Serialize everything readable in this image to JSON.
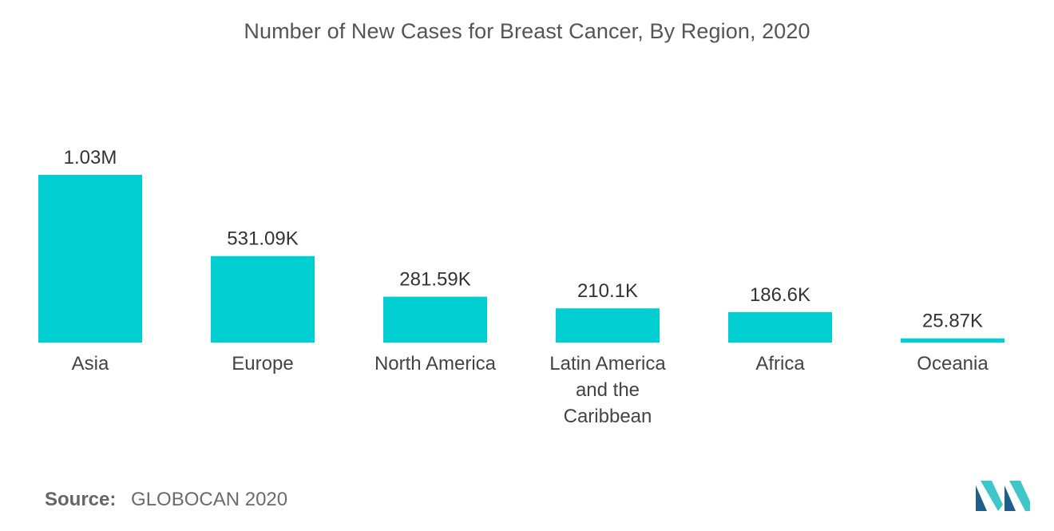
{
  "chart_data": {
    "type": "bar",
    "title": "Number of New Cases for Breast Cancer, By Region, 2020",
    "categories": [
      "Asia",
      "Europe",
      "North America",
      "Latin America and the Caribbean",
      "Africa",
      "Oceania"
    ],
    "category_lines": [
      [
        "Asia"
      ],
      [
        "Europe"
      ],
      [
        "North America"
      ],
      [
        "Latin America",
        "and the",
        "Caribbean"
      ],
      [
        "Africa"
      ],
      [
        "Oceania"
      ]
    ],
    "values": [
      1030000,
      531090,
      281590,
      210100,
      186600,
      25870
    ],
    "data_labels": [
      "1.03M",
      "531.09K",
      "281.59K",
      "210.1K",
      "186.6K",
      "25.87K"
    ],
    "xlabel": "",
    "ylabel": "",
    "ylim": [
      0,
      1030000
    ],
    "grid": false,
    "legend": "none",
    "bar_color": "#00CED1"
  },
  "source": {
    "label": "Source:",
    "text": "GLOBOCAN 2020"
  },
  "logo": {
    "icon": "mordor-intelligence-logo-icon",
    "color_dark": "#1F5F8B",
    "color_light": "#3EC6C9"
  }
}
